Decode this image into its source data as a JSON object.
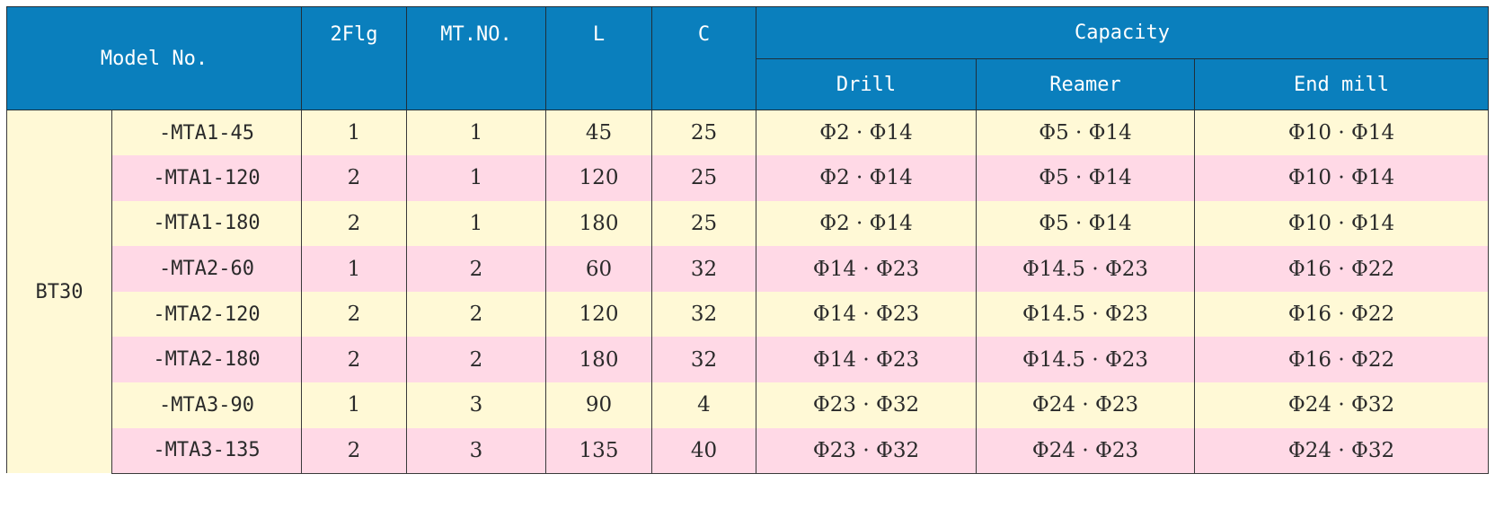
{
  "header": {
    "model_no": "Model No.",
    "flg": "2Flg",
    "mt_no": "MT.NO.",
    "l": "L",
    "c": "C",
    "capacity": "Capacity",
    "drill": "Drill",
    "reamer": "Reamer",
    "end_mill": "End mill"
  },
  "group": "BT30",
  "rows": [
    {
      "model": "-MTA1-45",
      "flg": "1",
      "mt": "1",
      "l": "45",
      "c": "25",
      "drill": "Φ2 · Φ14",
      "reamer": "Φ5 · Φ14",
      "end_mill": "Φ10 · Φ14"
    },
    {
      "model": "-MTA1-120",
      "flg": "2",
      "mt": "1",
      "l": "120",
      "c": "25",
      "drill": "Φ2 · Φ14",
      "reamer": "Φ5 · Φ14",
      "end_mill": "Φ10 · Φ14"
    },
    {
      "model": "-MTA1-180",
      "flg": "2",
      "mt": "1",
      "l": "180",
      "c": "25",
      "drill": "Φ2 · Φ14",
      "reamer": "Φ5 · Φ14",
      "end_mill": "Φ10 · Φ14"
    },
    {
      "model": "-MTA2-60",
      "flg": "1",
      "mt": "2",
      "l": "60",
      "c": "32",
      "drill": "Φ14 · Φ23",
      "reamer": "Φ14.5 · Φ23",
      "end_mill": "Φ16 · Φ22"
    },
    {
      "model": "-MTA2-120",
      "flg": "2",
      "mt": "2",
      "l": "120",
      "c": "32",
      "drill": "Φ14 · Φ23",
      "reamer": "Φ14.5 · Φ23",
      "end_mill": "Φ16 · Φ22"
    },
    {
      "model": "-MTA2-180",
      "flg": "2",
      "mt": "2",
      "l": "180",
      "c": "32",
      "drill": "Φ14 · Φ23",
      "reamer": "Φ14.5 · Φ23",
      "end_mill": "Φ16 · Φ22"
    },
    {
      "model": "-MTA3-90",
      "flg": "1",
      "mt": "3",
      "l": "90",
      "c": "4",
      "drill": "Φ23 · Φ32",
      "reamer": "Φ24 · Φ23",
      "end_mill": "Φ24 · Φ32"
    },
    {
      "model": "-MTA3-135",
      "flg": "2",
      "mt": "3",
      "l": "135",
      "c": "40",
      "drill": "Φ23 · Φ32",
      "reamer": "Φ24 · Φ23",
      "end_mill": "Φ24 · Φ32"
    }
  ]
}
